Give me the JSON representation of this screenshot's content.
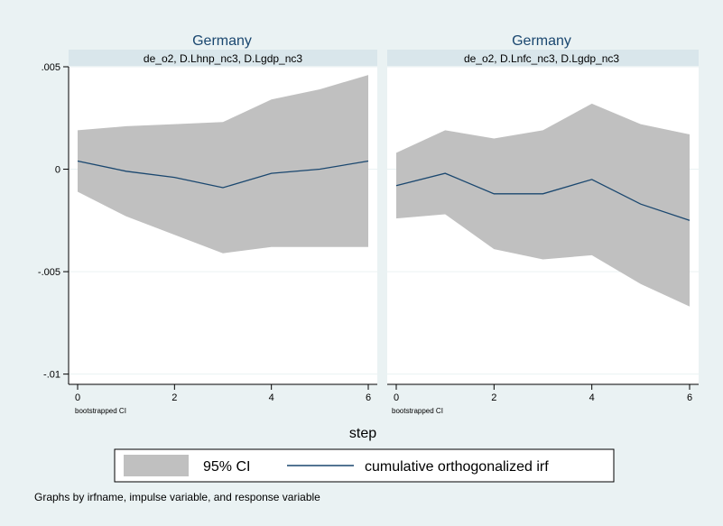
{
  "chart_data": {
    "type": "area",
    "ci_color": "#c0c0c0",
    "line_color": "#1a476f",
    "title_color": "#1a476f",
    "strip_color": "#d9e6eb",
    "xlabel": "step",
    "xticks": [
      0,
      2,
      4,
      6
    ],
    "xlim": [
      0,
      6
    ],
    "yticks": [
      0.005,
      0,
      -0.005,
      -0.01
    ],
    "ytick_labels": [
      ".005",
      "0",
      "-.005",
      "-.01"
    ],
    "ylim": [
      -0.0105,
      0.005
    ],
    "note": "bootstrapped CI",
    "legend": {
      "position": "bottom",
      "ci_label": "95% CI",
      "line_label": "cumulative orthogonalized irf"
    },
    "caption": "Graphs by irfname, impulse variable, and response variable",
    "panels": [
      {
        "title": "Germany",
        "subtitle": "de_o2, D.Lhnp_nc3, D.Lgdp_nc3",
        "x": [
          0,
          1,
          2,
          3,
          4,
          5,
          6
        ],
        "irf": [
          0.0004,
          -0.0001,
          -0.0004,
          -0.0009,
          -0.0002,
          0.0,
          0.0004
        ],
        "ci_upper": [
          0.0019,
          0.0021,
          0.0022,
          0.0023,
          0.0034,
          0.0039,
          0.0046
        ],
        "ci_lower": [
          -0.0011,
          -0.0023,
          -0.0032,
          -0.0041,
          -0.0038,
          -0.0038,
          -0.0038
        ]
      },
      {
        "title": "Germany",
        "subtitle": "de_o2, D.Lnfc_nc3, D.Lgdp_nc3",
        "x": [
          0,
          1,
          2,
          3,
          4,
          5,
          6
        ],
        "irf": [
          -0.0008,
          -0.0002,
          -0.0012,
          -0.0012,
          -0.0005,
          -0.0017,
          -0.0025
        ],
        "ci_upper": [
          0.0008,
          0.0019,
          0.0015,
          0.0019,
          0.0032,
          0.0022,
          0.0017
        ],
        "ci_lower": [
          -0.0024,
          -0.0022,
          -0.0039,
          -0.0044,
          -0.0042,
          -0.0056,
          -0.0067
        ]
      }
    ]
  }
}
